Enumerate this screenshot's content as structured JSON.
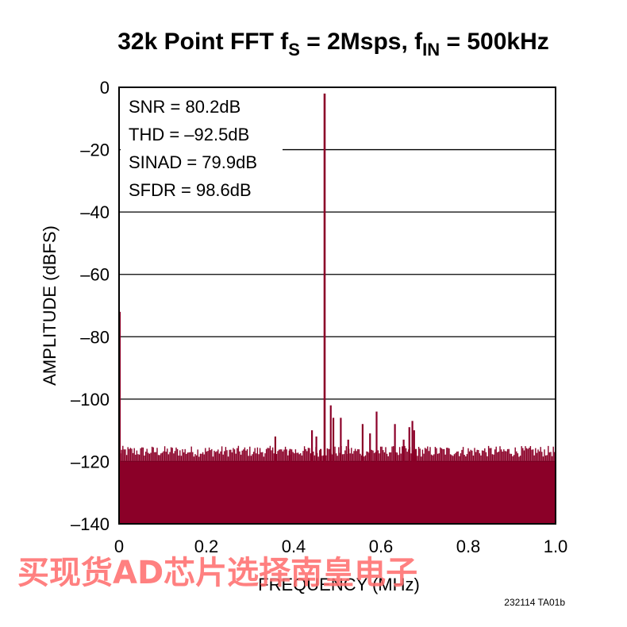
{
  "chart_data": {
    "type": "line",
    "title": "32k Point FFT f",
    "title_sub_s": "S",
    "title_mid": " = 2Msps, f",
    "title_sub_in": "IN",
    "title_end": " = 500kHz",
    "xlabel": "FREQUENCY (MHz)",
    "ylabel": "AMPLITUDE (dBFS)",
    "xlim": [
      0,
      1.0
    ],
    "ylim": [
      -140,
      0
    ],
    "xticks": [
      "0",
      "0.2",
      "0.4",
      "0.6",
      "0.8",
      "1.0"
    ],
    "yticks": [
      "0",
      "–20",
      "–40",
      "–60",
      "–80",
      "–100",
      "–120",
      "–140"
    ],
    "grid": "horizontal",
    "noise_floor": -120,
    "annotations": [
      "SNR = 80.2dB",
      "THD = –92.5dB",
      "SINAD = 79.9dB",
      "SFDR = 98.6dB"
    ],
    "series": [
      {
        "color": "#8b0028",
        "fundamental": {
          "x": 0.5,
          "y": -2
        },
        "spurs": [
          {
            "x": 0.0,
            "y": -72
          },
          {
            "x": 0.358,
            "y": -112
          },
          {
            "x": 0.392,
            "y": -116
          },
          {
            "x": 0.442,
            "y": -110
          },
          {
            "x": 0.452,
            "y": -112
          },
          {
            "x": 0.462,
            "y": -116
          },
          {
            "x": 0.485,
            "y": -102
          },
          {
            "x": 0.491,
            "y": -106
          },
          {
            "x": 0.508,
            "y": -106
          },
          {
            "x": 0.525,
            "y": -113
          },
          {
            "x": 0.558,
            "y": -108
          },
          {
            "x": 0.575,
            "y": -111
          },
          {
            "x": 0.59,
            "y": -104
          },
          {
            "x": 0.632,
            "y": -108
          },
          {
            "x": 0.652,
            "y": -113
          },
          {
            "x": 0.665,
            "y": -109
          },
          {
            "x": 0.672,
            "y": -107
          },
          {
            "x": 0.676,
            "y": -110
          },
          {
            "x": 0.68,
            "y": -116
          }
        ]
      }
    ]
  },
  "figure_id": "232114 TA01b",
  "watermark": "买现货AD芯片选择南皇电子"
}
